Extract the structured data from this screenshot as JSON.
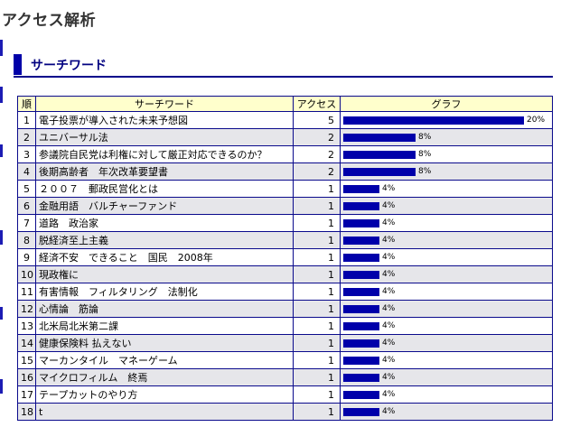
{
  "page_title": "アクセス解析",
  "section_title": "サーチワード",
  "table": {
    "headers": {
      "no": "順",
      "keyword": "サーチワード",
      "access": "アクセス",
      "graph": "グラフ"
    },
    "max_percent": 20,
    "rows": [
      {
        "no": "1",
        "keyword": "電子投票が導入された未来予想図",
        "access": "5",
        "percent": 20,
        "percent_label": "20%"
      },
      {
        "no": "2",
        "keyword": "ユニバーサル法",
        "access": "2",
        "percent": 8,
        "percent_label": "8%"
      },
      {
        "no": "3",
        "keyword": "参議院自民党は利権に対して厳正対応できるのか？",
        "access": "2",
        "percent": 8,
        "percent_label": "8%"
      },
      {
        "no": "4",
        "keyword": "後期高齢者　年次改革要望書",
        "access": "2",
        "percent": 8,
        "percent_label": "8%"
      },
      {
        "no": "5",
        "keyword": "２００７　郵政民営化とは",
        "access": "1",
        "percent": 4,
        "percent_label": "4%"
      },
      {
        "no": "6",
        "keyword": "金融用語　バルチャーファンド",
        "access": "1",
        "percent": 4,
        "percent_label": "4%"
      },
      {
        "no": "7",
        "keyword": "道路　政治家",
        "access": "1",
        "percent": 4,
        "percent_label": "4%"
      },
      {
        "no": "8",
        "keyword": "脱経済至上主義",
        "access": "1",
        "percent": 4,
        "percent_label": "4%"
      },
      {
        "no": "9",
        "keyword": "経済不安　できること　国民　2008年",
        "access": "1",
        "percent": 4,
        "percent_label": "4%"
      },
      {
        "no": "10",
        "keyword": "現政権に",
        "access": "1",
        "percent": 4,
        "percent_label": "4%"
      },
      {
        "no": "11",
        "keyword": "有害情報　フィルタリング　法制化",
        "access": "1",
        "percent": 4,
        "percent_label": "4%"
      },
      {
        "no": "12",
        "keyword": "心情論　筋論",
        "access": "1",
        "percent": 4,
        "percent_label": "4%"
      },
      {
        "no": "13",
        "keyword": "北米局北米第二課",
        "access": "1",
        "percent": 4,
        "percent_label": "4%"
      },
      {
        "no": "14",
        "keyword": "健康保険料 払えない",
        "access": "1",
        "percent": 4,
        "percent_label": "4%"
      },
      {
        "no": "15",
        "keyword": "マーカンタイル　マネーゲーム",
        "access": "1",
        "percent": 4,
        "percent_label": "4%"
      },
      {
        "no": "16",
        "keyword": "マイクロフィルム　終焉",
        "access": "1",
        "percent": 4,
        "percent_label": "4%"
      },
      {
        "no": "17",
        "keyword": "テープカットのやり方",
        "access": "1",
        "percent": 4,
        "percent_label": "4%"
      },
      {
        "no": "18",
        "keyword": "t",
        "access": "1",
        "percent": 4,
        "percent_label": "4%"
      }
    ]
  },
  "colors": {
    "bar": "#0000aa",
    "border": "#0a0a8c",
    "header_bg": "#ffffcc",
    "stripe": "#e6e6ea",
    "accent": "#00008b"
  }
}
